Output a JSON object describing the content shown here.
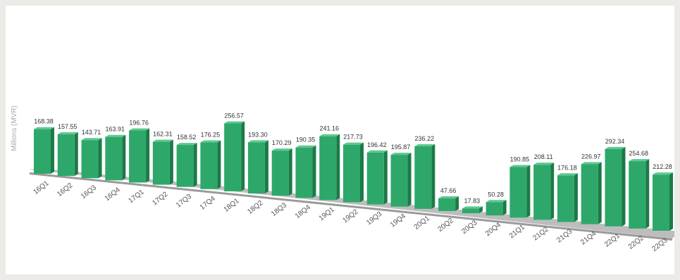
{
  "chart_data": {
    "type": "bar",
    "title": "",
    "xlabel": "",
    "ylabel": "Millions (MVR)",
    "ylim": [
      0,
      300
    ],
    "grid": false,
    "legend": "none",
    "bar_color": "#2ea86a",
    "categories": [
      "16Q1",
      "16Q2",
      "16Q3",
      "16Q4",
      "17Q1",
      "17Q2",
      "17Q3",
      "17Q4",
      "18Q1",
      "18Q2",
      "18Q3",
      "18Q4",
      "19Q1",
      "19Q2",
      "19Q3",
      "19Q4",
      "20Q1",
      "20Q2",
      "20Q3",
      "20Q4",
      "21Q1",
      "21Q2",
      "21Q3",
      "21Q4",
      "22Q1",
      "22Q2",
      "22Q3"
    ],
    "values": [
      168.38,
      157.55,
      143.71,
      163.91,
      196.76,
      162.31,
      158.52,
      176.25,
      256.57,
      193.3,
      170.29,
      190.35,
      241.16,
      217.73,
      196.42,
      195.87,
      236.22,
      47.66,
      17.83,
      50.28,
      190.85,
      208.11,
      176.18,
      226.97,
      292.34,
      254.68,
      212.28
    ],
    "value_labels": [
      "168.38",
      "157.55",
      "143.71",
      "163.91",
      "196.76",
      "162.31",
      "158.52",
      "176.25",
      "256.57",
      "193.30",
      "170.29",
      "190.35",
      "241.16",
      "217.73",
      "196.42",
      "195.87",
      "236.22",
      "47.66",
      "17.83",
      "50.28",
      "190.85",
      "208.11",
      "176.18",
      "226.97",
      "292.34",
      "254.68",
      "212.28"
    ]
  }
}
